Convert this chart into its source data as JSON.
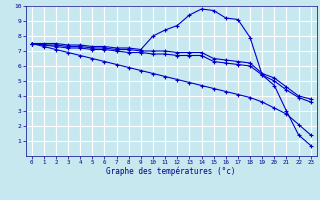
{
  "xlabel": "Graphe des températures (°c)",
  "xlim": [
    -0.5,
    23.5
  ],
  "ylim": [
    0,
    10
  ],
  "xticks": [
    0,
    1,
    2,
    3,
    4,
    5,
    6,
    7,
    8,
    9,
    10,
    11,
    12,
    13,
    14,
    15,
    16,
    17,
    18,
    19,
    20,
    21,
    22,
    23
  ],
  "yticks": [
    1,
    2,
    3,
    4,
    5,
    6,
    7,
    8,
    9,
    10
  ],
  "background_color": "#c8e8f0",
  "grid_color": "#ffffff",
  "line_color": "#0000cc",
  "lines": [
    {
      "x": [
        0,
        1,
        2,
        3,
        4,
        5,
        6,
        7,
        8,
        9,
        10,
        11,
        12,
        13,
        14,
        15,
        16,
        17,
        18,
        19,
        20,
        21,
        22,
        23
      ],
      "y": [
        7.5,
        7.5,
        7.5,
        7.4,
        7.4,
        7.3,
        7.3,
        7.2,
        7.2,
        7.1,
        8.0,
        8.4,
        8.7,
        9.4,
        9.8,
        9.7,
        9.2,
        9.1,
        7.9,
        5.4,
        4.7,
        3.0,
        1.4,
        0.7
      ]
    },
    {
      "x": [
        0,
        1,
        2,
        3,
        4,
        5,
        6,
        7,
        8,
        9,
        10,
        11,
        12,
        13,
        14,
        15,
        16,
        17,
        18,
        19,
        20,
        21,
        22,
        23
      ],
      "y": [
        7.5,
        7.4,
        7.4,
        7.3,
        7.3,
        7.2,
        7.2,
        7.1,
        7.1,
        7.0,
        7.0,
        7.0,
        6.9,
        6.9,
        6.9,
        6.5,
        6.4,
        6.3,
        6.2,
        5.5,
        5.2,
        4.6,
        4.0,
        3.8
      ]
    },
    {
      "x": [
        0,
        1,
        2,
        3,
        4,
        5,
        6,
        7,
        8,
        9,
        10,
        11,
        12,
        13,
        14,
        15,
        16,
        17,
        18,
        19,
        20,
        21,
        22,
        23
      ],
      "y": [
        7.5,
        7.4,
        7.3,
        7.2,
        7.2,
        7.1,
        7.1,
        7.0,
        6.9,
        6.9,
        6.8,
        6.8,
        6.7,
        6.7,
        6.7,
        6.3,
        6.2,
        6.1,
        6.0,
        5.4,
        5.0,
        4.4,
        3.9,
        3.6
      ]
    },
    {
      "x": [
        0,
        1,
        2,
        3,
        4,
        5,
        6,
        7,
        8,
        9,
        10,
        11,
        12,
        13,
        14,
        15,
        16,
        17,
        18,
        19,
        20,
        21,
        22,
        23
      ],
      "y": [
        7.5,
        7.3,
        7.1,
        6.9,
        6.7,
        6.5,
        6.3,
        6.1,
        5.9,
        5.7,
        5.5,
        5.3,
        5.1,
        4.9,
        4.7,
        4.5,
        4.3,
        4.1,
        3.9,
        3.6,
        3.2,
        2.8,
        2.1,
        1.4
      ]
    }
  ]
}
